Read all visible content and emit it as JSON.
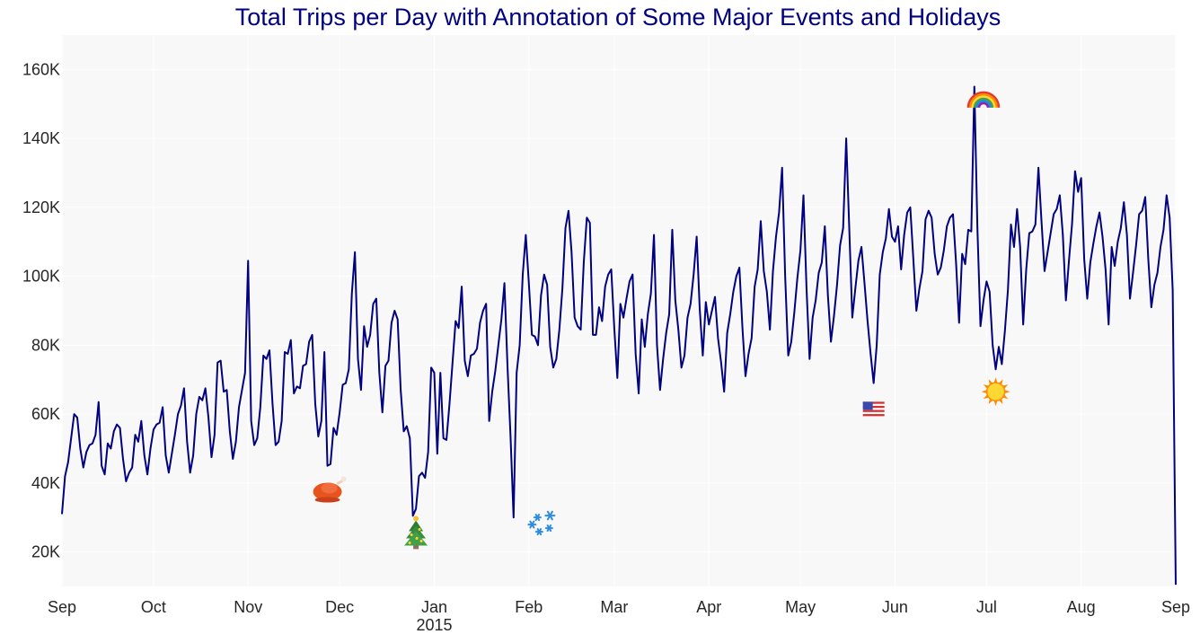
{
  "chart_data": {
    "type": "line",
    "title": "Total Trips per Day with Annotation of Some Major Events and Holidays",
    "xlabel": "",
    "ylabel": "",
    "x_start": "2014-09-01",
    "x_end": "2015-09-01",
    "xlim": [
      "2014-09-01",
      "2015-09-01"
    ],
    "ylim": [
      10000,
      170000
    ],
    "grid": true,
    "legend": "none",
    "colors": {
      "line": "#000080",
      "plot_background": "#f8f8f8",
      "grid": "#ffffff",
      "title": "#000080"
    },
    "x_ticks": [
      {
        "date": "2014-09-01",
        "label": "Sep",
        "sublabel": ""
      },
      {
        "date": "2014-10-01",
        "label": "Oct",
        "sublabel": ""
      },
      {
        "date": "2014-11-01",
        "label": "Nov",
        "sublabel": ""
      },
      {
        "date": "2014-12-01",
        "label": "Dec",
        "sublabel": ""
      },
      {
        "date": "2015-01-01",
        "label": "Jan",
        "sublabel": "2015"
      },
      {
        "date": "2015-02-01",
        "label": "Feb",
        "sublabel": ""
      },
      {
        "date": "2015-03-01",
        "label": "Mar",
        "sublabel": ""
      },
      {
        "date": "2015-04-01",
        "label": "Apr",
        "sublabel": ""
      },
      {
        "date": "2015-05-01",
        "label": "May",
        "sublabel": ""
      },
      {
        "date": "2015-06-01",
        "label": "Jun",
        "sublabel": ""
      },
      {
        "date": "2015-07-01",
        "label": "Jul",
        "sublabel": ""
      },
      {
        "date": "2015-08-01",
        "label": "Aug",
        "sublabel": ""
      },
      {
        "date": "2015-09-01",
        "label": "Sep",
        "sublabel": ""
      }
    ],
    "y_ticks": [
      {
        "value": 20000,
        "label": "20K"
      },
      {
        "value": 40000,
        "label": "40K"
      },
      {
        "value": 60000,
        "label": "60K"
      },
      {
        "value": 80000,
        "label": "80K"
      },
      {
        "value": 100000,
        "label": "100K"
      },
      {
        "value": 120000,
        "label": "120K"
      },
      {
        "value": 140000,
        "label": "140K"
      },
      {
        "value": 160000,
        "label": "160K"
      }
    ],
    "series": [
      {
        "values": [
          31000,
          42000,
          46000,
          53000,
          60000,
          59000,
          50000,
          44500,
          49000,
          51000,
          51500,
          54000,
          63500,
          45000,
          42500,
          51500,
          50000,
          55000,
          57000,
          56000,
          47000,
          40500,
          43000,
          44500,
          54000,
          52000,
          58000,
          48000,
          42500,
          50000,
          55500,
          57000,
          57500,
          62000,
          48000,
          43000,
          48500,
          54000,
          60000,
          62500,
          67500,
          52000,
          43000,
          48000,
          60000,
          65000,
          64000,
          67500,
          59000,
          47500,
          54000,
          75000,
          75500,
          66500,
          67000,
          55000,
          47000,
          52000,
          62000,
          67000,
          72000,
          104500,
          58000,
          51000,
          53000,
          62000,
          77000,
          76000,
          78500,
          63000,
          51000,
          52000,
          58000,
          78000,
          77500,
          81500,
          66000,
          68000,
          67500,
          74000,
          74500,
          81000,
          83000,
          63000,
          53500,
          58000,
          78000,
          45000,
          45500,
          56000,
          54000,
          60500,
          68500,
          69000,
          73000,
          95000,
          107000,
          76000,
          67000,
          85500,
          79500,
          83000,
          92000,
          93500,
          72000,
          60500,
          74000,
          75500,
          86500,
          90000,
          87500,
          67000,
          55000,
          56500,
          53000,
          30500,
          32500,
          42000,
          43000,
          41500,
          49000,
          73500,
          72000,
          48500,
          72000,
          53000,
          52500,
          63000,
          75000,
          87000,
          85000,
          97000,
          75500,
          71000,
          77000,
          77500,
          79000,
          86500,
          90000,
          92000,
          58000,
          66500,
          72500,
          80000,
          87500,
          98000,
          74000,
          53500,
          30000,
          72000,
          80000,
          100500,
          112000,
          98000,
          83000,
          82500,
          80000,
          94500,
          100500,
          97500,
          79500,
          73500,
          76000,
          84500,
          96500,
          114000,
          119000,
          107000,
          88000,
          85500,
          84500,
          104000,
          117000,
          115500,
          83000,
          83000,
          91000,
          87000,
          97000,
          100500,
          102000,
          85000,
          70500,
          92000,
          88000,
          93500,
          98500,
          100500,
          77500,
          66000,
          87500,
          79500,
          89000,
          95000,
          112000,
          80000,
          67000,
          76000,
          83500,
          89000,
          113500,
          93000,
          84500,
          73500,
          77000,
          88000,
          92000,
          100500,
          111500,
          90500,
          77000,
          92500,
          86000,
          90000,
          94000,
          82000,
          75000,
          66500,
          83500,
          89000,
          95500,
          100000,
          102500,
          85000,
          71000,
          77500,
          82000,
          97000,
          102000,
          116000,
          101500,
          95500,
          84500,
          101500,
          111500,
          118500,
          131500,
          100000,
          77000,
          81000,
          89500,
          99500,
          107500,
          123500,
          96500,
          76000,
          88000,
          93000,
          101000,
          104000,
          114500,
          94500,
          81000,
          88500,
          97500,
          109000,
          114000,
          140000,
          114000,
          88000,
          96500,
          104500,
          108500,
          98000,
          87000,
          77500,
          69000,
          80000,
          100500,
          107000,
          111000,
          119500,
          111500,
          110000,
          114500,
          102000,
          112000,
          118500,
          120000,
          105000,
          90000,
          96500,
          101500,
          116500,
          119000,
          117000,
          106500,
          100500,
          102500,
          107500,
          114500,
          117000,
          118000,
          104000,
          86500,
          106500,
          103500,
          113500,
          113000,
          155000,
          114000,
          85500,
          93000,
          98500,
          95500,
          80000,
          73000,
          79500,
          74500,
          84000,
          96000,
          115000,
          108500,
          119500,
          108500,
          86000,
          102000,
          112500,
          113000,
          115000,
          131500,
          116000,
          101500,
          107000,
          112500,
          118000,
          119500,
          123500,
          112000,
          93000,
          104500,
          115000,
          130500,
          124500,
          128500,
          105000,
          93500,
          104000,
          109500,
          114500,
          118500,
          111500,
          102000,
          86000,
          108500,
          103000,
          110000,
          114000,
          121500,
          112000,
          93500,
          101000,
          109000,
          118000,
          119000,
          123000,
          105000,
          91000,
          97500,
          101000,
          108500,
          113500,
          123500,
          117000,
          96000,
          10500
        ]
      }
    ],
    "annotations": [
      {
        "event": "Thanksgiving",
        "icon": "turkey-icon",
        "date": "2014-11-27",
        "y": 38000
      },
      {
        "event": "Christmas",
        "icon": "christmas-tree-icon",
        "date": "2014-12-26",
        "y": 25000
      },
      {
        "event": "Blizzard",
        "icon": "snowflakes-icon",
        "date": "2015-02-05",
        "y": 29000
      },
      {
        "event": "Memorial Day",
        "icon": "us-flag-icon",
        "date": "2015-05-25",
        "y": 61500
      },
      {
        "event": "Pride",
        "icon": "rainbow-icon",
        "date": "2015-06-30",
        "y": 151000
      },
      {
        "event": "Independence Day",
        "icon": "sun-icon",
        "date": "2015-07-04",
        "y": 66500
      }
    ]
  }
}
